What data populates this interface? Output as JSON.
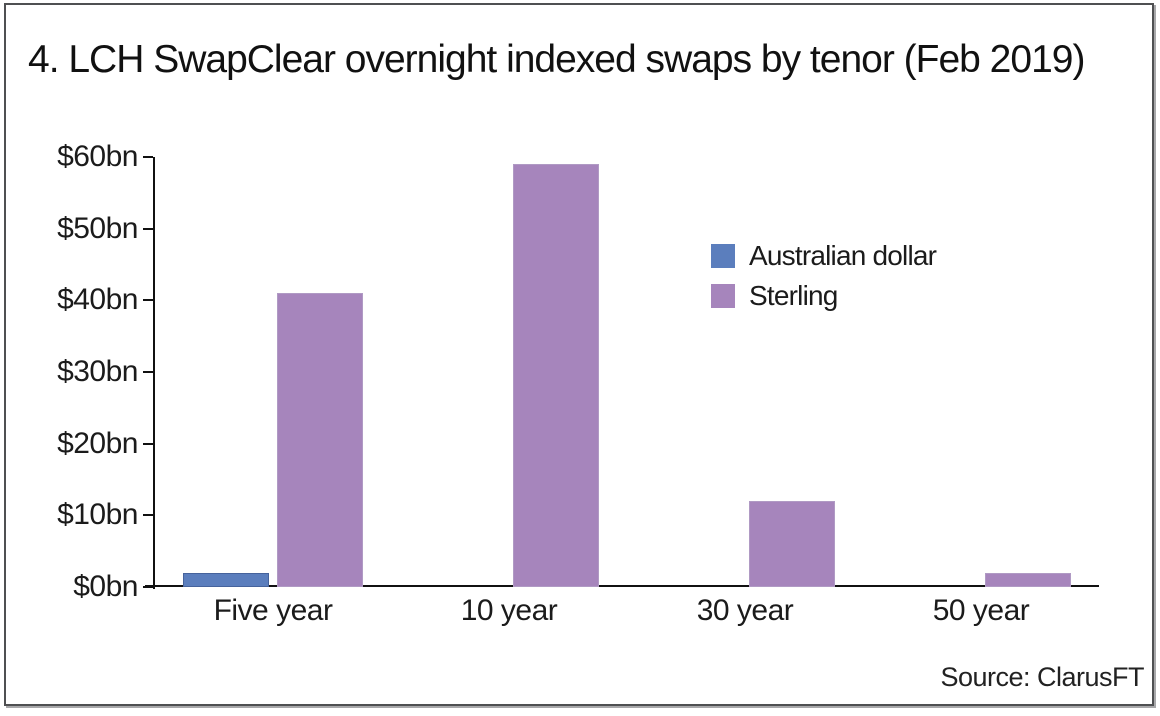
{
  "title": "4. LCH SwapClear overnight indexed swaps by tenor (Feb 2019)",
  "source": "Source: ClarusFT",
  "colors": {
    "australian_dollar": "#5b7ebd",
    "australian_dollar_border": "#46639c",
    "sterling": "#a685bc",
    "sterling_border": "#b09ac4",
    "axis": "#111111",
    "frame_border": "#4f5052"
  },
  "legend": {
    "items": [
      {
        "label": "Australian dollar",
        "color": "#5b7ebd"
      },
      {
        "label": "Sterling",
        "color": "#a685bc"
      }
    ]
  },
  "chart_data": {
    "type": "bar",
    "title": "4. LCH SwapClear overnight indexed swaps by tenor (Feb 2019)",
    "categories": [
      "Five year",
      "10 year",
      "30 year",
      "50 year"
    ],
    "series": [
      {
        "name": "Australian dollar",
        "color": "#5b7ebd",
        "border": "#46639c",
        "values": [
          2,
          0,
          0,
          0
        ]
      },
      {
        "name": "Sterling",
        "color": "#a685bc",
        "border": "#b09ac4",
        "values": [
          41,
          59,
          12,
          2
        ]
      }
    ],
    "xlabel": "",
    "ylabel": "",
    "ylim": [
      0,
      60
    ],
    "ytick_labels": [
      "$60bn",
      "$50bn",
      "$40bn",
      "$30bn",
      "$20bn",
      "$10bn",
      "$0bn"
    ],
    "unit": "USD billions",
    "grid": false,
    "legend_position": "inside upper right",
    "source": "Source: ClarusFT"
  }
}
